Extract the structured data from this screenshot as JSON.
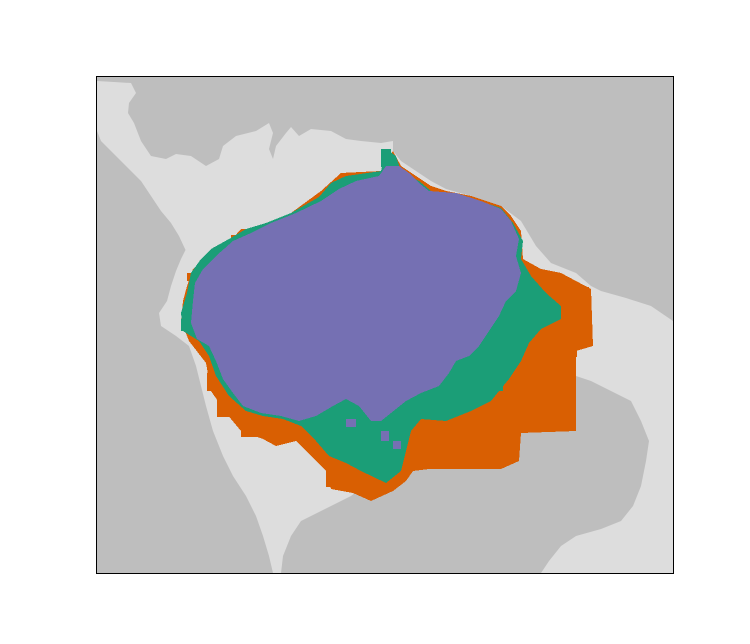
{
  "map": {
    "colors": {
      "ocean": "#bebebe",
      "land": "#dddddd",
      "class_a": "#7570b3",
      "class_b": "#d95f02",
      "class_c": "#1b9e77",
      "frame": "#000000"
    },
    "classes": [
      {
        "id": "class_a",
        "color": "#7570b3"
      },
      {
        "id": "class_b",
        "color": "#d95f02"
      },
      {
        "id": "class_c",
        "color": "#1b9e77"
      }
    ],
    "legend": "none",
    "grid": false
  }
}
